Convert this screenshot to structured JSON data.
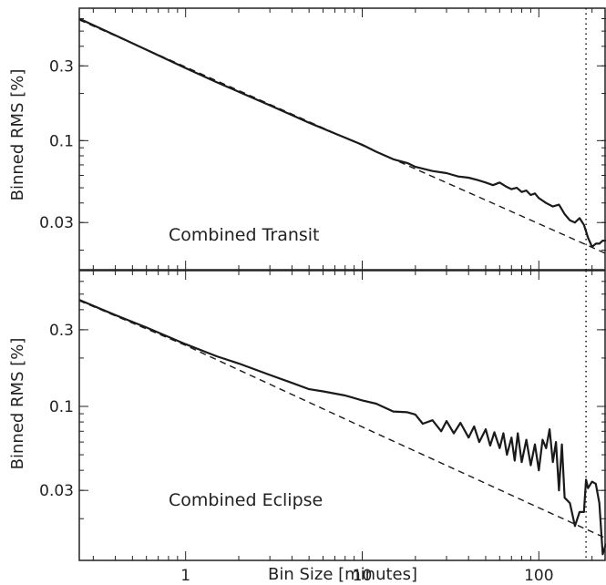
{
  "chart_data": [
    {
      "type": "line",
      "annotation": "Combined Transit",
      "ylabel": "Binned RMS [%]",
      "xlabel": "",
      "x_scale": "log",
      "y_scale": "log",
      "xlim": [
        0.25,
        240
      ],
      "ylim": [
        0.015,
        0.7
      ],
      "x_ticks": [],
      "y_ticks": [
        {
          "value": 0.3,
          "label": "0.3"
        },
        {
          "value": 0.1,
          "label": "0.1"
        },
        {
          "value": 0.03,
          "label": "0.03"
        }
      ],
      "vline": 185,
      "series": [
        {
          "style": "solid",
          "points": [
            [
              0.25,
              0.6
            ],
            [
              0.4,
              0.47
            ],
            [
              0.6,
              0.38
            ],
            [
              1,
              0.29
            ],
            [
              1.5,
              0.236
            ],
            [
              2,
              0.205
            ],
            [
              3,
              0.168
            ],
            [
              5,
              0.13
            ],
            [
              7,
              0.111
            ],
            [
              10,
              0.094
            ],
            [
              12,
              0.085
            ],
            [
              15,
              0.076
            ],
            [
              18,
              0.072
            ],
            [
              20,
              0.068
            ],
            [
              25,
              0.064
            ],
            [
              30,
              0.062
            ],
            [
              35,
              0.059
            ],
            [
              40,
              0.058
            ],
            [
              45,
              0.056
            ],
            [
              50,
              0.054
            ],
            [
              55,
              0.052
            ],
            [
              60,
              0.054
            ],
            [
              65,
              0.051
            ],
            [
              70,
              0.049
            ],
            [
              75,
              0.05
            ],
            [
              80,
              0.047
            ],
            [
              85,
              0.048
            ],
            [
              90,
              0.045
            ],
            [
              95,
              0.046
            ],
            [
              100,
              0.043
            ],
            [
              110,
              0.04
            ],
            [
              120,
              0.038
            ],
            [
              130,
              0.039
            ],
            [
              140,
              0.034
            ],
            [
              150,
              0.031
            ],
            [
              160,
              0.03
            ],
            [
              170,
              0.032
            ],
            [
              180,
              0.029
            ],
            [
              190,
              0.024
            ],
            [
              200,
              0.021
            ],
            [
              210,
              0.022
            ],
            [
              220,
              0.022
            ],
            [
              230,
              0.023
            ],
            [
              240,
              0.023
            ]
          ]
        },
        {
          "style": "dashed",
          "points": [
            [
              0.25,
              0.59
            ],
            [
              1,
              0.295
            ],
            [
              10,
              0.0933
            ],
            [
              100,
              0.0295
            ],
            [
              240,
              0.019
            ]
          ]
        }
      ]
    },
    {
      "type": "line",
      "annotation": "Combined Eclipse",
      "ylabel": "Binned RMS [%]",
      "xlabel": "Bin Size [minutes]",
      "x_scale": "log",
      "y_scale": "log",
      "xlim": [
        0.25,
        240
      ],
      "ylim": [
        0.011,
        0.7
      ],
      "x_ticks": [
        {
          "value": 1,
          "label": "1"
        },
        {
          "value": 10,
          "label": "10"
        },
        {
          "value": 100,
          "label": "100"
        }
      ],
      "y_ticks": [
        {
          "value": 0.3,
          "label": "0.3"
        },
        {
          "value": 0.1,
          "label": "0.1"
        },
        {
          "value": 0.03,
          "label": "0.03"
        }
      ],
      "vline": 185,
      "series": [
        {
          "style": "solid",
          "points": [
            [
              0.25,
              0.46
            ],
            [
              0.4,
              0.37
            ],
            [
              0.6,
              0.31
            ],
            [
              1,
              0.244
            ],
            [
              1.5,
              0.205
            ],
            [
              2,
              0.185
            ],
            [
              3,
              0.157
            ],
            [
              4,
              0.14
            ],
            [
              5,
              0.128
            ],
            [
              6,
              0.124
            ],
            [
              8,
              0.117
            ],
            [
              10,
              0.109
            ],
            [
              12,
              0.104
            ],
            [
              15,
              0.093
            ],
            [
              18,
              0.092
            ],
            [
              20,
              0.089
            ],
            [
              22,
              0.078
            ],
            [
              25,
              0.082
            ],
            [
              28,
              0.07
            ],
            [
              30,
              0.081
            ],
            [
              33,
              0.068
            ],
            [
              36,
              0.079
            ],
            [
              40,
              0.064
            ],
            [
              43,
              0.075
            ],
            [
              46,
              0.06
            ],
            [
              50,
              0.072
            ],
            [
              53,
              0.057
            ],
            [
              56,
              0.069
            ],
            [
              60,
              0.055
            ],
            [
              63,
              0.068
            ],
            [
              66,
              0.05
            ],
            [
              70,
              0.064
            ],
            [
              73,
              0.046
            ],
            [
              76,
              0.068
            ],
            [
              80,
              0.045
            ],
            [
              85,
              0.062
            ],
            [
              90,
              0.043
            ],
            [
              95,
              0.058
            ],
            [
              100,
              0.04
            ],
            [
              105,
              0.062
            ],
            [
              110,
              0.055
            ],
            [
              115,
              0.072
            ],
            [
              120,
              0.045
            ],
            [
              125,
              0.06
            ],
            [
              130,
              0.03
            ],
            [
              135,
              0.058
            ],
            [
              140,
              0.027
            ],
            [
              150,
              0.025
            ],
            [
              160,
              0.018
            ],
            [
              170,
              0.022
            ],
            [
              180,
              0.022
            ],
            [
              185,
              0.035
            ],
            [
              190,
              0.031
            ],
            [
              200,
              0.034
            ],
            [
              210,
              0.033
            ],
            [
              220,
              0.025
            ],
            [
              230,
              0.012
            ],
            [
              240,
              0.014
            ]
          ]
        },
        {
          "style": "dashed",
          "points": [
            [
              0.25,
              0.455
            ],
            [
              1,
              0.24
            ],
            [
              10,
              0.0745
            ],
            [
              100,
              0.0234
            ],
            [
              240,
              0.0151
            ]
          ]
        }
      ]
    }
  ]
}
